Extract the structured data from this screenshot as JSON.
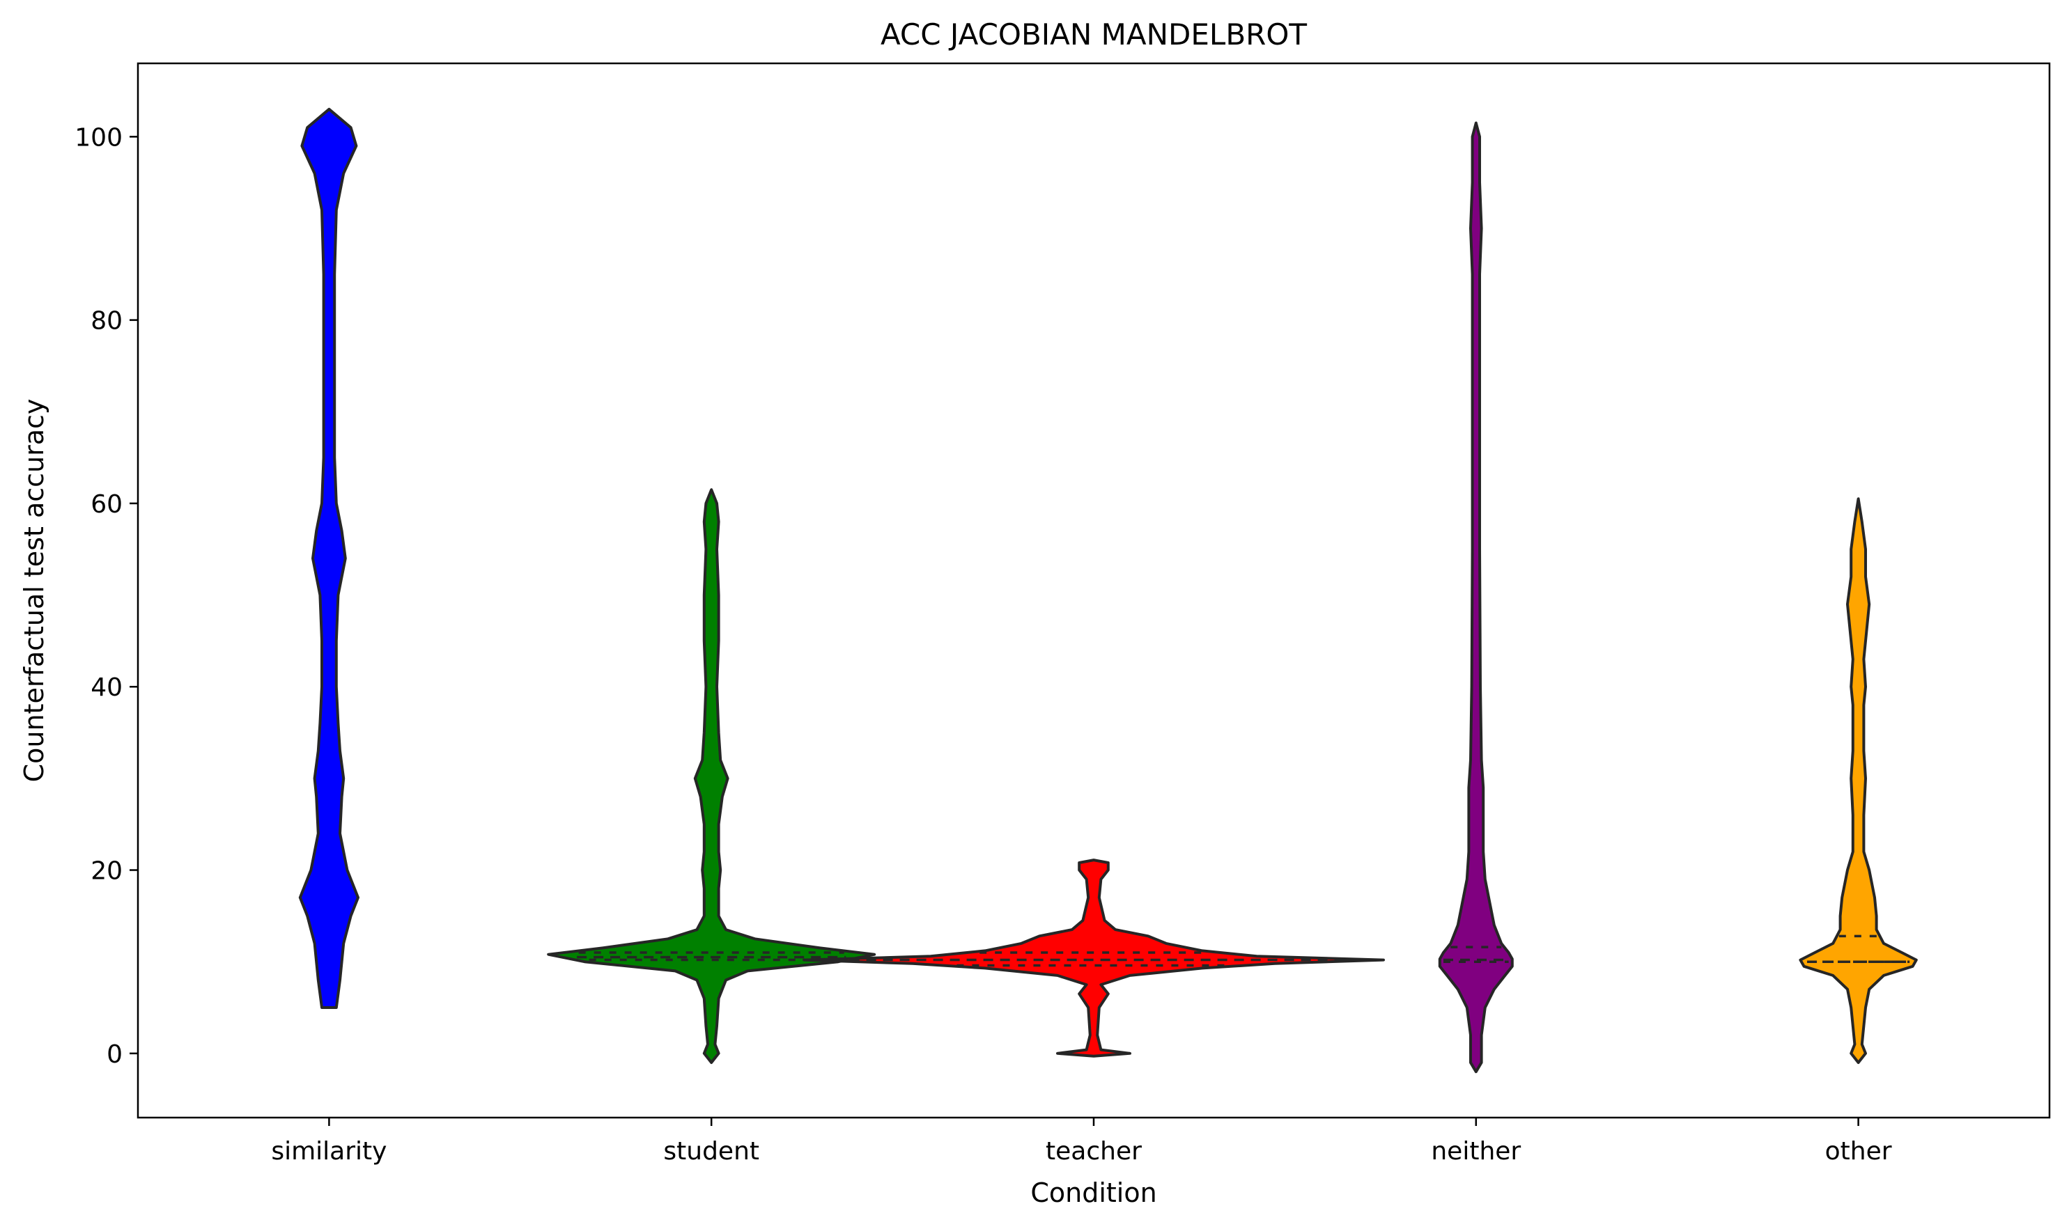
{
  "chart_data": {
    "type": "violin",
    "title": "ACC JACOBIAN MANDELBROT",
    "xlabel": "Condition",
    "ylabel": "Counterfactual test accuracy",
    "ylim": [
      -7,
      108
    ],
    "yticks": [
      0,
      20,
      40,
      60,
      80,
      100
    ],
    "grid": false,
    "categories": [
      "similarity",
      "student",
      "teacher",
      "neither",
      "other"
    ],
    "series": [
      {
        "category": "similarity",
        "color": "#0000ff",
        "min": 5,
        "max": 103,
        "quartiles": [],
        "density": [
          [
            5,
            0.02
          ],
          [
            8,
            0.03
          ],
          [
            12,
            0.04
          ],
          [
            15,
            0.06
          ],
          [
            17,
            0.08
          ],
          [
            20,
            0.05
          ],
          [
            24,
            0.03
          ],
          [
            28,
            0.035
          ],
          [
            30,
            0.04
          ],
          [
            33,
            0.03
          ],
          [
            36,
            0.025
          ],
          [
            40,
            0.02
          ],
          [
            45,
            0.02
          ],
          [
            50,
            0.025
          ],
          [
            54,
            0.045
          ],
          [
            57,
            0.035
          ],
          [
            60,
            0.02
          ],
          [
            65,
            0.015
          ],
          [
            75,
            0.015
          ],
          [
            85,
            0.015
          ],
          [
            92,
            0.02
          ],
          [
            96,
            0.04
          ],
          [
            99,
            0.075
          ],
          [
            101,
            0.06
          ],
          [
            103,
            0.0
          ]
        ]
      },
      {
        "category": "student",
        "color": "#008000",
        "min": -1,
        "max": 61.5,
        "quartiles": [
          10.2,
          10.5,
          11.0
        ],
        "density": [
          [
            -1,
            0.0
          ],
          [
            0,
            0.02
          ],
          [
            1,
            0.01
          ],
          [
            3,
            0.015
          ],
          [
            6,
            0.02
          ],
          [
            8,
            0.04
          ],
          [
            9,
            0.1
          ],
          [
            10,
            0.35
          ],
          [
            10.8,
            0.45
          ],
          [
            11.5,
            0.3
          ],
          [
            12.5,
            0.12
          ],
          [
            13.5,
            0.04
          ],
          [
            15,
            0.02
          ],
          [
            18,
            0.02
          ],
          [
            20,
            0.025
          ],
          [
            22,
            0.02
          ],
          [
            25,
            0.02
          ],
          [
            28,
            0.03
          ],
          [
            30,
            0.045
          ],
          [
            32,
            0.025
          ],
          [
            35,
            0.02
          ],
          [
            40,
            0.015
          ],
          [
            45,
            0.02
          ],
          [
            50,
            0.02
          ],
          [
            55,
            0.015
          ],
          [
            58,
            0.02
          ],
          [
            60,
            0.015
          ],
          [
            61.5,
            0.0
          ]
        ]
      },
      {
        "category": "teacher",
        "color": "#ff0000",
        "min": 0,
        "max": 21,
        "quartiles": [
          9.6,
          10.2,
          11.0
        ],
        "density": [
          [
            -0.3,
            0.0
          ],
          [
            0,
            0.1
          ],
          [
            0.4,
            0.02
          ],
          [
            2,
            0.01
          ],
          [
            5,
            0.015
          ],
          [
            6.5,
            0.04
          ],
          [
            7.5,
            0.02
          ],
          [
            8.5,
            0.1
          ],
          [
            9.3,
            0.3
          ],
          [
            9.8,
            0.5
          ],
          [
            10.2,
            0.8
          ],
          [
            10.6,
            0.45
          ],
          [
            11.2,
            0.3
          ],
          [
            12,
            0.2
          ],
          [
            12.8,
            0.15
          ],
          [
            13.5,
            0.06
          ],
          [
            14.5,
            0.03
          ],
          [
            17,
            0.015
          ],
          [
            19,
            0.02
          ],
          [
            20,
            0.04
          ],
          [
            20.8,
            0.04
          ],
          [
            21.1,
            0.0
          ]
        ]
      },
      {
        "category": "neither",
        "color": "#800080",
        "min": -2,
        "max": 101.5,
        "quartiles": [
          10.0,
          10.2,
          11.6
        ],
        "density": [
          [
            -2,
            0.0
          ],
          [
            -1,
            0.015
          ],
          [
            2,
            0.015
          ],
          [
            5,
            0.025
          ],
          [
            7,
            0.05
          ],
          [
            8.5,
            0.08
          ],
          [
            9.5,
            0.1
          ],
          [
            10.3,
            0.1
          ],
          [
            11,
            0.09
          ],
          [
            12,
            0.07
          ],
          [
            14,
            0.05
          ],
          [
            16,
            0.04
          ],
          [
            19,
            0.025
          ],
          [
            22,
            0.02
          ],
          [
            26,
            0.02
          ],
          [
            29,
            0.02
          ],
          [
            32,
            0.015
          ],
          [
            40,
            0.012
          ],
          [
            55,
            0.01
          ],
          [
            70,
            0.01
          ],
          [
            85,
            0.01
          ],
          [
            90,
            0.015
          ],
          [
            95,
            0.01
          ],
          [
            100,
            0.01
          ],
          [
            101.5,
            0.0
          ]
        ]
      },
      {
        "category": "other",
        "color": "#ffa500",
        "min": -1,
        "max": 60.5,
        "quartiles": [
          10.0,
          10.0,
          12.8
        ],
        "density": [
          [
            -1,
            0.0
          ],
          [
            0,
            0.02
          ],
          [
            1,
            0.01
          ],
          [
            3,
            0.015
          ],
          [
            5,
            0.02
          ],
          [
            7,
            0.03
          ],
          [
            8.5,
            0.07
          ],
          [
            9.5,
            0.15
          ],
          [
            10.2,
            0.16
          ],
          [
            11,
            0.12
          ],
          [
            12,
            0.07
          ],
          [
            13.5,
            0.05
          ],
          [
            15,
            0.05
          ],
          [
            17,
            0.045
          ],
          [
            19,
            0.035
          ],
          [
            20,
            0.03
          ],
          [
            22,
            0.015
          ],
          [
            26,
            0.015
          ],
          [
            30,
            0.02
          ],
          [
            33,
            0.015
          ],
          [
            38,
            0.015
          ],
          [
            40,
            0.02
          ],
          [
            43,
            0.015
          ],
          [
            47,
            0.025
          ],
          [
            49,
            0.03
          ],
          [
            52,
            0.02
          ],
          [
            55,
            0.02
          ],
          [
            58,
            0.01
          ],
          [
            60.5,
            0.0
          ]
        ]
      }
    ]
  }
}
